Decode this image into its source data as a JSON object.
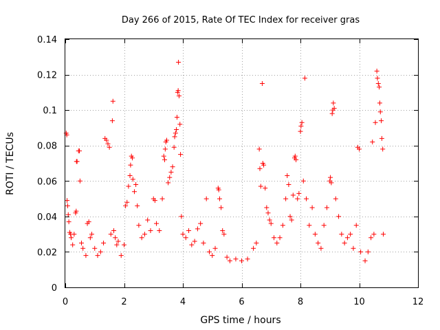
{
  "chart_data": {
    "type": "scatter",
    "title": "Day 266 of 2015, Rate Of TEC Index for receiver gras",
    "xlabel": "GPS time / hours",
    "ylabel": "ROTI / TECUs",
    "xlim": [
      0,
      12
    ],
    "ylim": [
      0,
      0.14
    ],
    "x_ticks": [
      0,
      2,
      4,
      6,
      8,
      10,
      12
    ],
    "y_ticks": [
      0,
      0.02,
      0.04,
      0.06,
      0.08,
      0.1,
      0.12,
      0.14
    ],
    "x_tick_labels": [
      "0",
      "2",
      "4",
      "6",
      "8",
      "10",
      "12"
    ],
    "y_tick_labels": [
      "0",
      "0.02",
      "0.04",
      "0.06",
      "0.08",
      "0.1",
      "0.12",
      "0.14"
    ],
    "grid": true,
    "marker": "+",
    "color": "#ff0000",
    "series": [
      {
        "values": [
          [
            0.03,
            0.087
          ],
          [
            0.05,
            0.086
          ],
          [
            0.06,
            0.049
          ],
          [
            0.08,
            0.046
          ],
          [
            0.1,
            0.041
          ],
          [
            0.12,
            0.037
          ],
          [
            0.15,
            0.031
          ],
          [
            0.18,
            0.03
          ],
          [
            0.2,
            0.028
          ],
          [
            0.25,
            0.024
          ],
          [
            0.3,
            0.03
          ],
          [
            0.35,
            0.042
          ],
          [
            0.37,
            0.043
          ],
          [
            0.38,
            0.071
          ],
          [
            0.4,
            0.071
          ],
          [
            0.45,
            0.077
          ],
          [
            0.48,
            0.077
          ],
          [
            0.5,
            0.06
          ],
          [
            0.55,
            0.025
          ],
          [
            0.6,
            0.022
          ],
          [
            0.7,
            0.018
          ],
          [
            0.75,
            0.036
          ],
          [
            0.8,
            0.037
          ],
          [
            0.85,
            0.028
          ],
          [
            0.9,
            0.03
          ],
          [
            1.0,
            0.022
          ],
          [
            1.1,
            0.018
          ],
          [
            1.2,
            0.02
          ],
          [
            1.3,
            0.025
          ],
          [
            1.35,
            0.084
          ],
          [
            1.4,
            0.083
          ],
          [
            1.45,
            0.081
          ],
          [
            1.5,
            0.079
          ],
          [
            1.55,
            0.03
          ],
          [
            1.6,
            0.094
          ],
          [
            1.62,
            0.105
          ],
          [
            1.65,
            0.032
          ],
          [
            1.7,
            0.028
          ],
          [
            1.75,
            0.024
          ],
          [
            1.8,
            0.026
          ],
          [
            1.9,
            0.018
          ],
          [
            2.0,
            0.024
          ],
          [
            2.05,
            0.046
          ],
          [
            2.1,
            0.048
          ],
          [
            2.15,
            0.057
          ],
          [
            2.2,
            0.063
          ],
          [
            2.22,
            0.069
          ],
          [
            2.25,
            0.074
          ],
          [
            2.28,
            0.073
          ],
          [
            2.3,
            0.061
          ],
          [
            2.35,
            0.054
          ],
          [
            2.4,
            0.058
          ],
          [
            2.45,
            0.046
          ],
          [
            2.5,
            0.035
          ],
          [
            2.6,
            0.028
          ],
          [
            2.7,
            0.03
          ],
          [
            2.8,
            0.038
          ],
          [
            2.9,
            0.032
          ],
          [
            3.0,
            0.05
          ],
          [
            3.05,
            0.049
          ],
          [
            3.1,
            0.036
          ],
          [
            3.2,
            0.032
          ],
          [
            3.3,
            0.05
          ],
          [
            3.35,
            0.074
          ],
          [
            3.38,
            0.072
          ],
          [
            3.4,
            0.078
          ],
          [
            3.42,
            0.082
          ],
          [
            3.45,
            0.083
          ],
          [
            3.5,
            0.059
          ],
          [
            3.55,
            0.062
          ],
          [
            3.6,
            0.065
          ],
          [
            3.65,
            0.068
          ],
          [
            3.7,
            0.079
          ],
          [
            3.72,
            0.085
          ],
          [
            3.75,
            0.087
          ],
          [
            3.78,
            0.089
          ],
          [
            3.8,
            0.096
          ],
          [
            3.82,
            0.11
          ],
          [
            3.84,
            0.111
          ],
          [
            3.85,
            0.127
          ],
          [
            3.87,
            0.108
          ],
          [
            3.9,
            0.092
          ],
          [
            3.92,
            0.075
          ],
          [
            3.95,
            0.04
          ],
          [
            4.0,
            0.03
          ],
          [
            4.1,
            0.028
          ],
          [
            4.2,
            0.032
          ],
          [
            4.3,
            0.024
          ],
          [
            4.4,
            0.026
          ],
          [
            4.5,
            0.033
          ],
          [
            4.6,
            0.036
          ],
          [
            4.7,
            0.025
          ],
          [
            4.8,
            0.05
          ],
          [
            4.9,
            0.02
          ],
          [
            5.0,
            0.018
          ],
          [
            5.1,
            0.022
          ],
          [
            5.2,
            0.056
          ],
          [
            5.22,
            0.055
          ],
          [
            5.25,
            0.05
          ],
          [
            5.3,
            0.045
          ],
          [
            5.35,
            0.032
          ],
          [
            5.4,
            0.03
          ],
          [
            5.5,
            0.017
          ],
          [
            5.6,
            0.015
          ],
          [
            5.8,
            0.016
          ],
          [
            6.0,
            0.015
          ],
          [
            6.2,
            0.016
          ],
          [
            6.4,
            0.022
          ],
          [
            6.5,
            0.025
          ],
          [
            6.6,
            0.078
          ],
          [
            6.62,
            0.067
          ],
          [
            6.65,
            0.057
          ],
          [
            6.7,
            0.115
          ],
          [
            6.72,
            0.07
          ],
          [
            6.75,
            0.069
          ],
          [
            6.8,
            0.056
          ],
          [
            6.85,
            0.045
          ],
          [
            6.9,
            0.042
          ],
          [
            6.95,
            0.038
          ],
          [
            7.0,
            0.036
          ],
          [
            7.1,
            0.028
          ],
          [
            7.2,
            0.025
          ],
          [
            7.3,
            0.028
          ],
          [
            7.4,
            0.035
          ],
          [
            7.5,
            0.05
          ],
          [
            7.55,
            0.063
          ],
          [
            7.6,
            0.058
          ],
          [
            7.65,
            0.04
          ],
          [
            7.7,
            0.038
          ],
          [
            7.75,
            0.052
          ],
          [
            7.8,
            0.073
          ],
          [
            7.82,
            0.074
          ],
          [
            7.85,
            0.072
          ],
          [
            7.9,
            0.05
          ],
          [
            7.95,
            0.053
          ],
          [
            8.0,
            0.088
          ],
          [
            8.02,
            0.091
          ],
          [
            8.05,
            0.093
          ],
          [
            8.1,
            0.06
          ],
          [
            8.15,
            0.118
          ],
          [
            8.2,
            0.05
          ],
          [
            8.3,
            0.035
          ],
          [
            8.4,
            0.045
          ],
          [
            8.5,
            0.03
          ],
          [
            8.6,
            0.025
          ],
          [
            8.7,
            0.022
          ],
          [
            8.8,
            0.035
          ],
          [
            8.9,
            0.045
          ],
          [
            9.0,
            0.06
          ],
          [
            9.02,
            0.062
          ],
          [
            9.05,
            0.059
          ],
          [
            9.08,
            0.098
          ],
          [
            9.1,
            0.1
          ],
          [
            9.12,
            0.104
          ],
          [
            9.15,
            0.101
          ],
          [
            9.2,
            0.05
          ],
          [
            9.3,
            0.04
          ],
          [
            9.4,
            0.03
          ],
          [
            9.5,
            0.025
          ],
          [
            9.6,
            0.028
          ],
          [
            9.7,
            0.03
          ],
          [
            9.8,
            0.022
          ],
          [
            9.9,
            0.035
          ],
          [
            9.95,
            0.079
          ],
          [
            10.0,
            0.078
          ],
          [
            10.05,
            0.02
          ],
          [
            10.2,
            0.015
          ],
          [
            10.3,
            0.02
          ],
          [
            10.4,
            0.028
          ],
          [
            10.45,
            0.082
          ],
          [
            10.5,
            0.03
          ],
          [
            10.55,
            0.093
          ],
          [
            10.6,
            0.122
          ],
          [
            10.62,
            0.118
          ],
          [
            10.65,
            0.115
          ],
          [
            10.68,
            0.113
          ],
          [
            10.7,
            0.104
          ],
          [
            10.72,
            0.099
          ],
          [
            10.75,
            0.094
          ],
          [
            10.77,
            0.084
          ],
          [
            10.8,
            0.078
          ],
          [
            10.82,
            0.03
          ]
        ]
      }
    ]
  }
}
